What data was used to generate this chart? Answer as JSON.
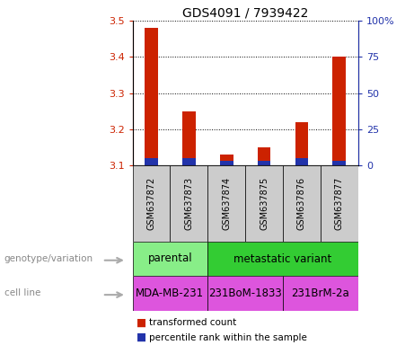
{
  "title": "GDS4091 / 7939422",
  "samples": [
    "GSM637872",
    "GSM637873",
    "GSM637874",
    "GSM637875",
    "GSM637876",
    "GSM637877"
  ],
  "transformed_count": [
    3.48,
    3.25,
    3.13,
    3.15,
    3.22,
    3.4
  ],
  "percentile_rank": [
    5,
    5,
    3,
    3,
    5,
    3
  ],
  "ylim_left": [
    3.1,
    3.5
  ],
  "ylim_right": [
    0,
    100
  ],
  "yticks_left": [
    3.1,
    3.2,
    3.3,
    3.4,
    3.5
  ],
  "yticks_right": [
    0,
    25,
    50,
    75,
    100
  ],
  "bar_base": 3.1,
  "color_red": "#cc2200",
  "color_blue": "#2233aa",
  "color_gray": "#cccccc",
  "genotype_groups": [
    {
      "label": "parental",
      "start": 0,
      "end": 2,
      "color": "#88ee88"
    },
    {
      "label": "metastatic variant",
      "start": 2,
      "end": 6,
      "color": "#33cc33"
    }
  ],
  "cell_lines": [
    {
      "label": "MDA-MB-231",
      "start": 0,
      "end": 2,
      "color": "#dd55dd"
    },
    {
      "label": "231BoM-1833",
      "start": 2,
      "end": 4,
      "color": "#dd55dd"
    },
    {
      "label": "231BrM-2a",
      "start": 4,
      "end": 6,
      "color": "#dd55dd"
    }
  ],
  "legend_items": [
    {
      "label": "transformed count",
      "color": "#cc2200"
    },
    {
      "label": "percentile rank within the sample",
      "color": "#2233aa"
    }
  ]
}
